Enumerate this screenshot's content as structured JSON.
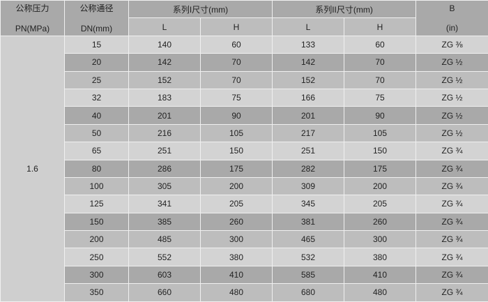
{
  "header": {
    "pn": [
      "公称压力",
      "PN(MPa)"
    ],
    "dn": [
      "公称通径",
      "DN(mm)"
    ],
    "series1": "系列I尺寸(mm)",
    "series2": "系列II尺寸(mm)",
    "b": [
      "B",
      "(in)"
    ],
    "sub": [
      "L",
      "H",
      "L",
      "H"
    ]
  },
  "pn_value": "1.6",
  "rows": [
    [
      "15",
      "140",
      "60",
      "133",
      "60",
      "ZG ⅜"
    ],
    [
      "20",
      "142",
      "70",
      "142",
      "70",
      "ZG ½"
    ],
    [
      "25",
      "152",
      "70",
      "152",
      "70",
      "ZG ½"
    ],
    [
      "32",
      "183",
      "75",
      "166",
      "75",
      "ZG ½"
    ],
    [
      "40",
      "201",
      "90",
      "201",
      "90",
      "ZG ½"
    ],
    [
      "50",
      "216",
      "105",
      "217",
      "105",
      "ZG ½"
    ],
    [
      "65",
      "251",
      "150",
      "251",
      "150",
      "ZG ¾"
    ],
    [
      "80",
      "286",
      "175",
      "282",
      "175",
      "ZG ¾"
    ],
    [
      "100",
      "305",
      "200",
      "309",
      "200",
      "ZG ¾"
    ],
    [
      "125",
      "341",
      "205",
      "345",
      "205",
      "ZG ¾"
    ],
    [
      "150",
      "385",
      "260",
      "381",
      "260",
      "ZG ¾"
    ],
    [
      "200",
      "485",
      "300",
      "465",
      "300",
      "ZG ¾"
    ],
    [
      "250",
      "552",
      "380",
      "532",
      "380",
      "ZG ¾"
    ],
    [
      "300",
      "603",
      "410",
      "585",
      "410",
      "ZG ¾"
    ],
    [
      "350",
      "660",
      "480",
      "680",
      "480",
      "ZG ¾"
    ]
  ]
}
